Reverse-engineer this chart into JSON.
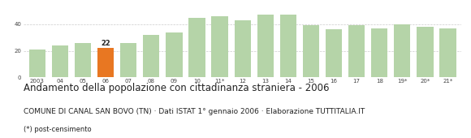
{
  "categories": [
    "2003",
    "04",
    "05",
    "06",
    "07",
    "08",
    "09",
    "10",
    "11*",
    "12",
    "13",
    "14",
    "15",
    "16",
    "17",
    "18",
    "19*",
    "20*",
    "21*"
  ],
  "values": [
    21,
    24,
    26,
    22,
    26,
    32,
    34,
    45,
    46,
    43,
    47,
    47,
    39,
    36,
    39,
    37,
    40,
    38,
    37
  ],
  "highlight_index": 3,
  "bar_color_normal": "#b5d4a8",
  "bar_color_highlight": "#e87722",
  "highlight_label": "22",
  "ylim": [
    0,
    52
  ],
  "yticks": [
    0,
    20,
    40
  ],
  "grid_color": "#cccccc",
  "background_color": "#ffffff",
  "title": "Andamento della popolazione con cittadinanza straniera - 2006",
  "subtitle": "COMUNE DI CANAL SAN BOVO (TN) · Dati ISTAT 1° gennaio 2006 · Elaborazione TUTTITALIA.IT",
  "footnote": "(*) post-censimento",
  "title_color": "#222222",
  "subtitle_color": "#222222",
  "footnote_color": "#222222",
  "title_fontsize": 8.5,
  "subtitle_fontsize": 6.5,
  "footnote_fontsize": 6.0
}
